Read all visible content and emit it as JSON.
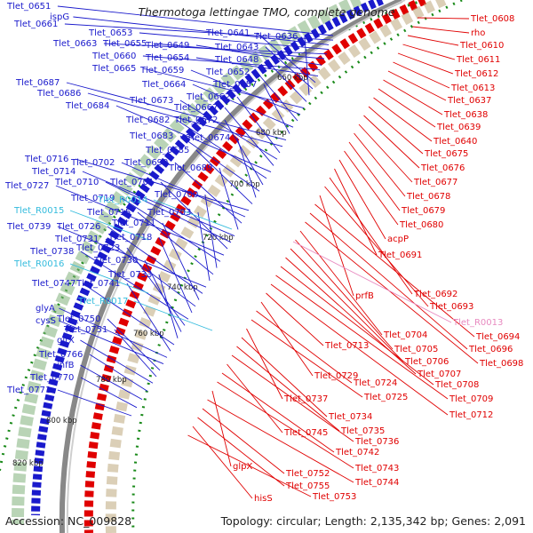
{
  "title": "Thermotoga lettingae TMO, complete genome",
  "accession": "Accession: NC_009828",
  "summary": "Topology: circular; Length: 2,135,342 bp; Genes: 2,091",
  "colors": {
    "forward": "#1a1acc",
    "reverse": "#e00000",
    "rna": "#33bbdd",
    "rna_reverse": "#e88ac0",
    "backbone": "#888888",
    "gc_dots": "#1a8a1a"
  },
  "ticks": [
    "660 kbp",
    "680 kbp",
    "700 kbp",
    "720 kbp",
    "740 kbp",
    "760 kbp",
    "780 kbp",
    "800 kbp",
    "820 kbp"
  ],
  "forward_labels": [
    "Tlet_0651",
    "Tlet_0661",
    "ispG",
    "Tlet_0653",
    "Tlet_0663",
    "Tlet_0655",
    "Tlet_0649",
    "Tlet_0660",
    "Tlet_0654",
    "Tlet_0641",
    "Tlet_0643",
    "Tlet_0636",
    "Tlet_0648",
    "Tlet_0665",
    "Tlet_0659",
    "Tlet_0652",
    "Tlet_0664",
    "Tlet_0657",
    "Tlet_0687",
    "Tlet_0686",
    "Tlet_0662",
    "Tlet_0673",
    "Tlet_0667",
    "Tlet_0684",
    "Tlet_0682",
    "Tlet_0672",
    "Tlet_0683",
    "Tlet_0674",
    "Tlet_0685",
    "Tlet_0716",
    "Tlet_0702",
    "Tlet_0690",
    "Tlet_0689",
    "Tlet_0714",
    "Tlet_0710",
    "Tlet_0701",
    "Tlet_0727",
    "Tlet_0719",
    "Tlet_0700",
    "Tlet_0715",
    "Tlet_0703",
    "Tlet_0739",
    "Tlet_0726",
    "Tlet_0711",
    "Tlet_0731",
    "Tlet_0718",
    "Tlet_0738",
    "Tlet_0723",
    "Tlet_0730",
    "Tlet_0733",
    "Tlet_0747",
    "Tlet_0741",
    "glyA",
    "cysS",
    "Tlet_0750",
    "Tlet_0751",
    "gltX",
    "Tlet_0766",
    "infB",
    "Tlet_0770",
    "Tlet_0771"
  ],
  "rna_labels": [
    "Tlet_R0014",
    "Tlet_R0015",
    "Tlet_R0016",
    "Tlet_R0017"
  ],
  "reverse_labels": [
    "Tlet_0608",
    "rho",
    "Tlet_0610",
    "Tlet_0611",
    "Tlet_0612",
    "Tlet_0613",
    "Tlet_0637",
    "Tlet_0638",
    "Tlet_0639",
    "Tlet_0640",
    "Tlet_0675",
    "Tlet_0676",
    "Tlet_0677",
    "Tlet_0678",
    "Tlet_0679",
    "Tlet_0680",
    "acpP",
    "Tlet_0691",
    "Tlet_0692",
    "Tlet_0693",
    "prfB",
    "Tlet_0694",
    "Tlet_0696",
    "Tlet_0698",
    "Tlet_0704",
    "Tlet_0705",
    "Tlet_0706",
    "Tlet_0707",
    "Tlet_0708",
    "Tlet_0709",
    "Tlet_0712",
    "Tlet_0713",
    "Tlet_0729",
    "Tlet_0724",
    "Tlet_0725",
    "Tlet_0737",
    "Tlet_0734",
    "Tlet_0735",
    "Tlet_0736",
    "Tlet_0745",
    "Tlet_0742",
    "Tlet_0743",
    "glpX",
    "Tlet_0744",
    "Tlet_0752",
    "Tlet_0755",
    "hisS",
    "Tlet_0753"
  ],
  "rna_reverse_labels": [
    "Tlet_R0013"
  ]
}
